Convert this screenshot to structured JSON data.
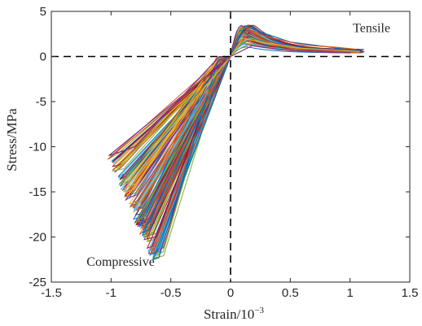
{
  "chart_data": {
    "type": "line",
    "title": "",
    "xlabel": "Strain/10",
    "xlabel_exponent": "−3",
    "ylabel": "Stress/MPa",
    "xlim": [
      -1.5,
      1.5
    ],
    "ylim": [
      -25,
      5
    ],
    "xticks": [
      -1.5,
      -1,
      -0.5,
      0,
      0.5,
      1,
      1.5
    ],
    "xtick_labels": [
      "-1.5",
      "-1",
      "-0.5",
      "0",
      "0.5",
      "1",
      "1.5"
    ],
    "yticks": [
      5,
      0,
      -5,
      -10,
      -15,
      -20,
      -25
    ],
    "ytick_labels": [
      "5",
      "0",
      "-5",
      "-10",
      "-15",
      "-20",
      "-25"
    ],
    "grid": false,
    "legend": "none",
    "reference_lines": {
      "x": 0,
      "y": 0,
      "style": "dashed",
      "color": "#000000"
    },
    "annotations": [
      {
        "text": "Tensile",
        "x": 1.18,
        "y": 2.7
      },
      {
        "text": "Compressive",
        "x": -0.92,
        "y": -23.2
      }
    ],
    "colors": [
      "#0072bd",
      "#d95319",
      "#edb120",
      "#7e2f8e",
      "#77ac30",
      "#4dbeee",
      "#a2142f"
    ],
    "series_count": 100,
    "tension_envelope": {
      "peak_strain_range": [
        0.08,
        0.2
      ],
      "peak_stress_range": [
        1.0,
        3.5
      ],
      "end_strain_range": [
        1.0,
        1.12
      ],
      "end_stress_range": [
        0.4,
        0.8
      ]
    },
    "compression_envelope": {
      "peak_strain_range": [
        -1.02,
        -0.64
      ],
      "peak_stress_range": [
        -22.5,
        -11
      ],
      "unload_strain_range": [
        -0.1,
        -0.03
      ]
    },
    "sample_curves": [
      {
        "tension": [
          [
            0,
            0
          ],
          [
            0.12,
            3.4
          ],
          [
            0.25,
            2.7
          ],
          [
            0.5,
            1.6
          ],
          [
            0.8,
            1.1
          ],
          [
            1.12,
            0.5
          ]
        ],
        "compression": [
          [
            0,
            0
          ],
          [
            -0.65,
            -22.5
          ],
          [
            -0.6,
            -22.3
          ],
          [
            -0.1,
            -0.3
          ],
          [
            -0.05,
            0
          ]
        ]
      },
      {
        "tension": [
          [
            0,
            0
          ],
          [
            0.15,
            3.0
          ],
          [
            0.3,
            2.2
          ],
          [
            0.6,
            1.3
          ],
          [
            0.9,
            1.0
          ],
          [
            1.05,
            0.8
          ]
        ],
        "compression": [
          [
            0,
            0
          ],
          [
            -0.78,
            -17
          ],
          [
            -0.74,
            -16.8
          ],
          [
            -0.12,
            -0.2
          ],
          [
            -0.05,
            0
          ]
        ]
      },
      {
        "tension": [
          [
            0,
            0
          ],
          [
            0.1,
            2.0
          ],
          [
            0.3,
            1.5
          ],
          [
            0.6,
            0.9
          ],
          [
            1.08,
            0.55
          ]
        ],
        "compression": [
          [
            0,
            0
          ],
          [
            -0.9,
            -14.2
          ],
          [
            -0.86,
            -14
          ],
          [
            -0.1,
            -0.2
          ],
          [
            -0.04,
            0
          ]
        ]
      },
      {
        "tension": [
          [
            0,
            0
          ],
          [
            0.18,
            1.2
          ],
          [
            0.4,
            0.8
          ],
          [
            0.7,
            0.5
          ],
          [
            1.0,
            0.4
          ]
        ],
        "compression": [
          [
            0,
            0
          ],
          [
            -1.02,
            -11
          ],
          [
            -0.8,
            -10
          ],
          [
            -0.1,
            -0.1
          ],
          [
            -0.05,
            0
          ]
        ]
      }
    ]
  }
}
